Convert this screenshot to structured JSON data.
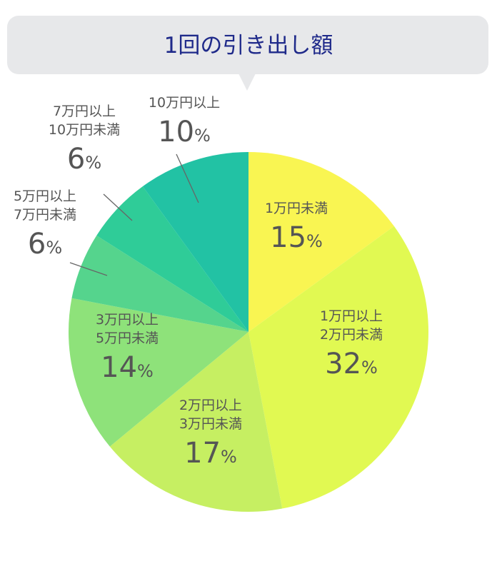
{
  "chart_data": {
    "type": "pie",
    "title": "1回の引き出し額",
    "unit": "%",
    "slices": [
      {
        "label_lines": [
          "1万円未満"
        ],
        "value": 15,
        "color": "#f9f552"
      },
      {
        "label_lines": [
          "1万円以上",
          "2万円未満"
        ],
        "value": 32,
        "color": "#e1f952"
      },
      {
        "label_lines": [
          "2万円以上",
          "3万円未満"
        ],
        "value": 17,
        "color": "#c6ef62"
      },
      {
        "label_lines": [
          "3万円以上",
          "5万円未満"
        ],
        "value": 14,
        "color": "#8ee27a"
      },
      {
        "label_lines": [
          "5万円以上",
          "7万円未満"
        ],
        "value": 6,
        "color": "#55d48d"
      },
      {
        "label_lines": [
          "7万円以上",
          "10万円未満"
        ],
        "value": 6,
        "color": "#2fcc98"
      },
      {
        "label_lines": [
          "10万円以上"
        ],
        "value": 10,
        "color": "#22c2a4"
      }
    ]
  }
}
